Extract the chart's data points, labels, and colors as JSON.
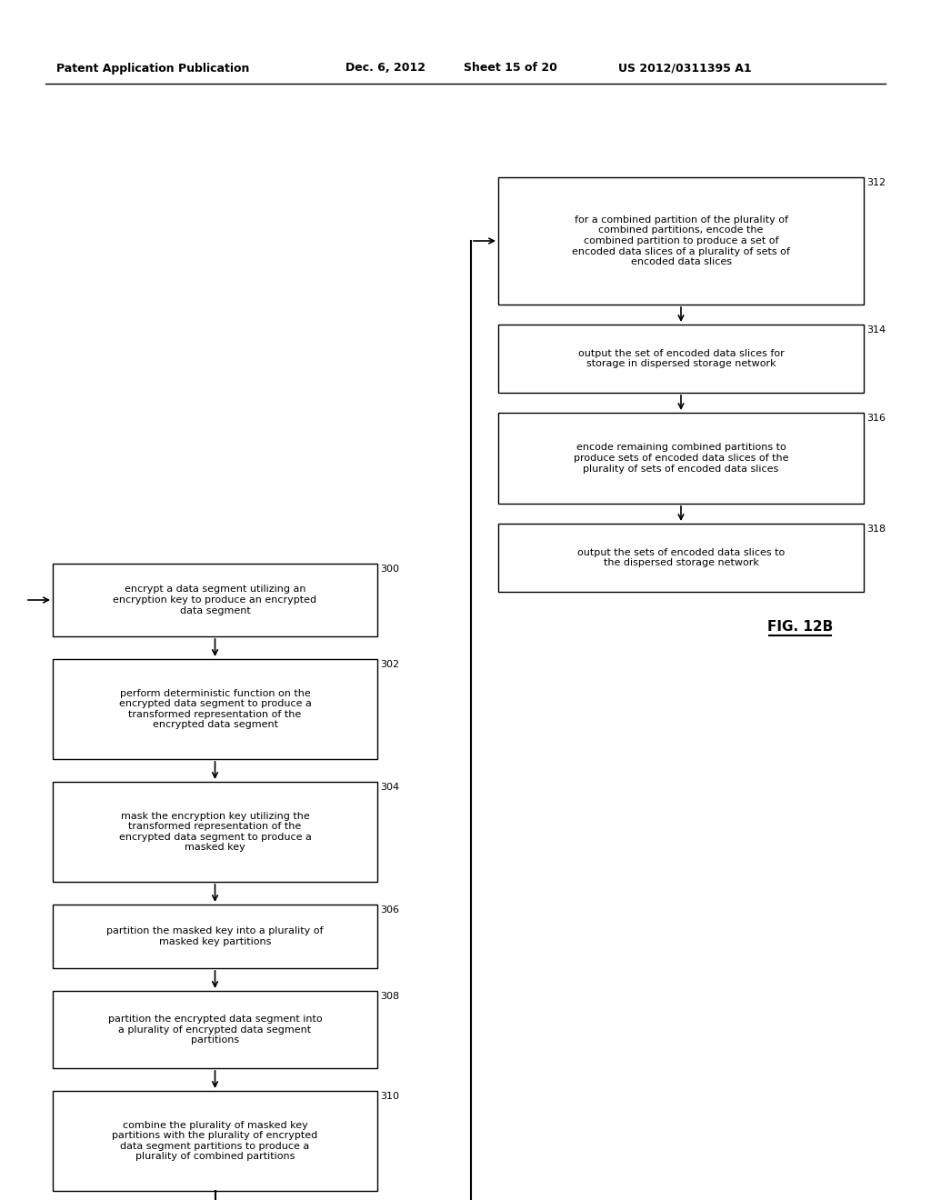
{
  "bg_color": "#ffffff",
  "header_text": "Patent Application Publication",
  "header_date": "Dec. 6, 2012",
  "header_sheet": "Sheet 15 of 20",
  "header_patent": "US 2012/0311395 A1",
  "fig_label": "FIG. 12B",
  "left_boxes": [
    {
      "id": "300",
      "text": "encrypt a data segment utilizing an\nencryption key to produce an encrypted\ndata segment"
    },
    {
      "id": "302",
      "text": "perform deterministic function on the\nencrypted data segment to produce a\ntransformed representation of the\nencrypted data segment"
    },
    {
      "id": "304",
      "text": "mask the encryption key utilizing the\ntransformed representation of the\nencrypted data segment to produce a\nmasked key"
    },
    {
      "id": "306",
      "text": "partition the masked key into a plurality of\nmasked key partitions"
    },
    {
      "id": "308",
      "text": "partition the encrypted data segment into\na plurality of encrypted data segment\npartitions"
    },
    {
      "id": "310",
      "text": "combine the plurality of masked key\npartitions with the plurality of encrypted\ndata segment partitions to produce a\nplurality of combined partitions"
    }
  ],
  "right_boxes": [
    {
      "id": "312",
      "text": "for a combined partition of the plurality of\ncombined partitions, encode the\ncombined partition to produce a set of\nencoded data slices of a plurality of sets of\nencoded data slices"
    },
    {
      "id": "314",
      "text": "output the set of encoded data slices for\nstorage in dispersed storage network"
    },
    {
      "id": "316",
      "text": "encode remaining combined partitions to\nproduce sets of encoded data slices of the\nplurality of sets of encoded data slices"
    },
    {
      "id": "318",
      "text": "output the sets of encoded data slices to\nthe dispersed storage network"
    }
  ]
}
